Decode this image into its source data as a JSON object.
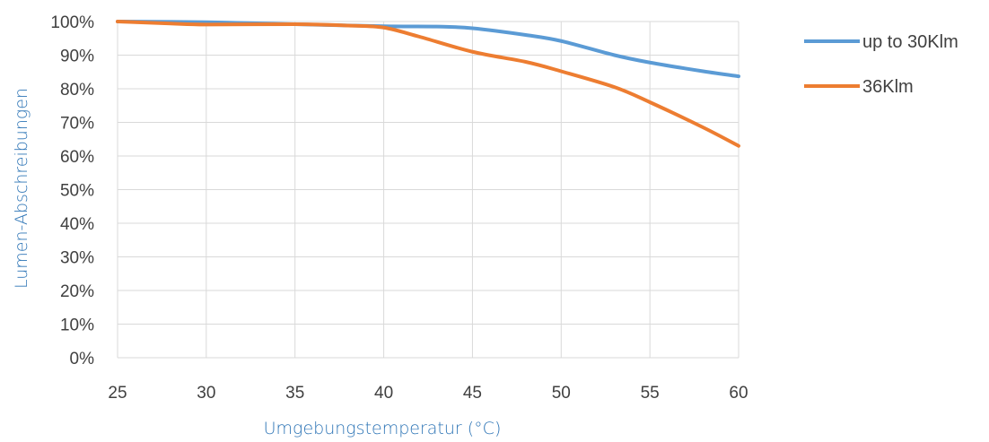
{
  "chart_data": {
    "type": "line",
    "title": "",
    "xlabel": "Umgebungstemperatur (°C)",
    "ylabel": "Lumen-Abschreibungen",
    "xlim": [
      25,
      60
    ],
    "ylim": [
      0,
      100
    ],
    "x_ticks": [
      25,
      30,
      35,
      40,
      45,
      50,
      55,
      60
    ],
    "y_ticks": [
      0,
      10,
      20,
      30,
      40,
      50,
      60,
      70,
      80,
      90,
      100
    ],
    "y_tick_labels": [
      "0%",
      "10%",
      "20%",
      "30%",
      "40%",
      "50%",
      "60%",
      "70%",
      "80%",
      "90%",
      "100%"
    ],
    "grid": true,
    "legend_position": "right",
    "series": [
      {
        "name": "up to 30Klm",
        "color": "#5b9bd5",
        "points": [
          [
            25,
            100
          ],
          [
            30,
            99.8
          ],
          [
            35,
            99.2
          ],
          [
            40,
            98.6
          ],
          [
            43,
            98.5
          ],
          [
            45,
            98.0
          ],
          [
            48,
            96.0
          ],
          [
            50,
            94.2
          ],
          [
            53,
            90.0
          ],
          [
            55,
            87.8
          ],
          [
            58,
            85.2
          ],
          [
            60,
            83.7
          ]
        ]
      },
      {
        "name": "36Klm",
        "color": "#ed7d31",
        "points": [
          [
            25,
            100
          ],
          [
            28,
            99.4
          ],
          [
            30,
            99.1
          ],
          [
            35,
            99.2
          ],
          [
            38,
            98.8
          ],
          [
            40,
            98.2
          ],
          [
            42,
            95.5
          ],
          [
            45,
            91.0
          ],
          [
            48,
            88.0
          ],
          [
            50,
            85.2
          ],
          [
            53,
            80.5
          ],
          [
            55,
            76.0
          ],
          [
            58,
            68.5
          ],
          [
            60,
            63.0
          ]
        ]
      }
    ]
  }
}
